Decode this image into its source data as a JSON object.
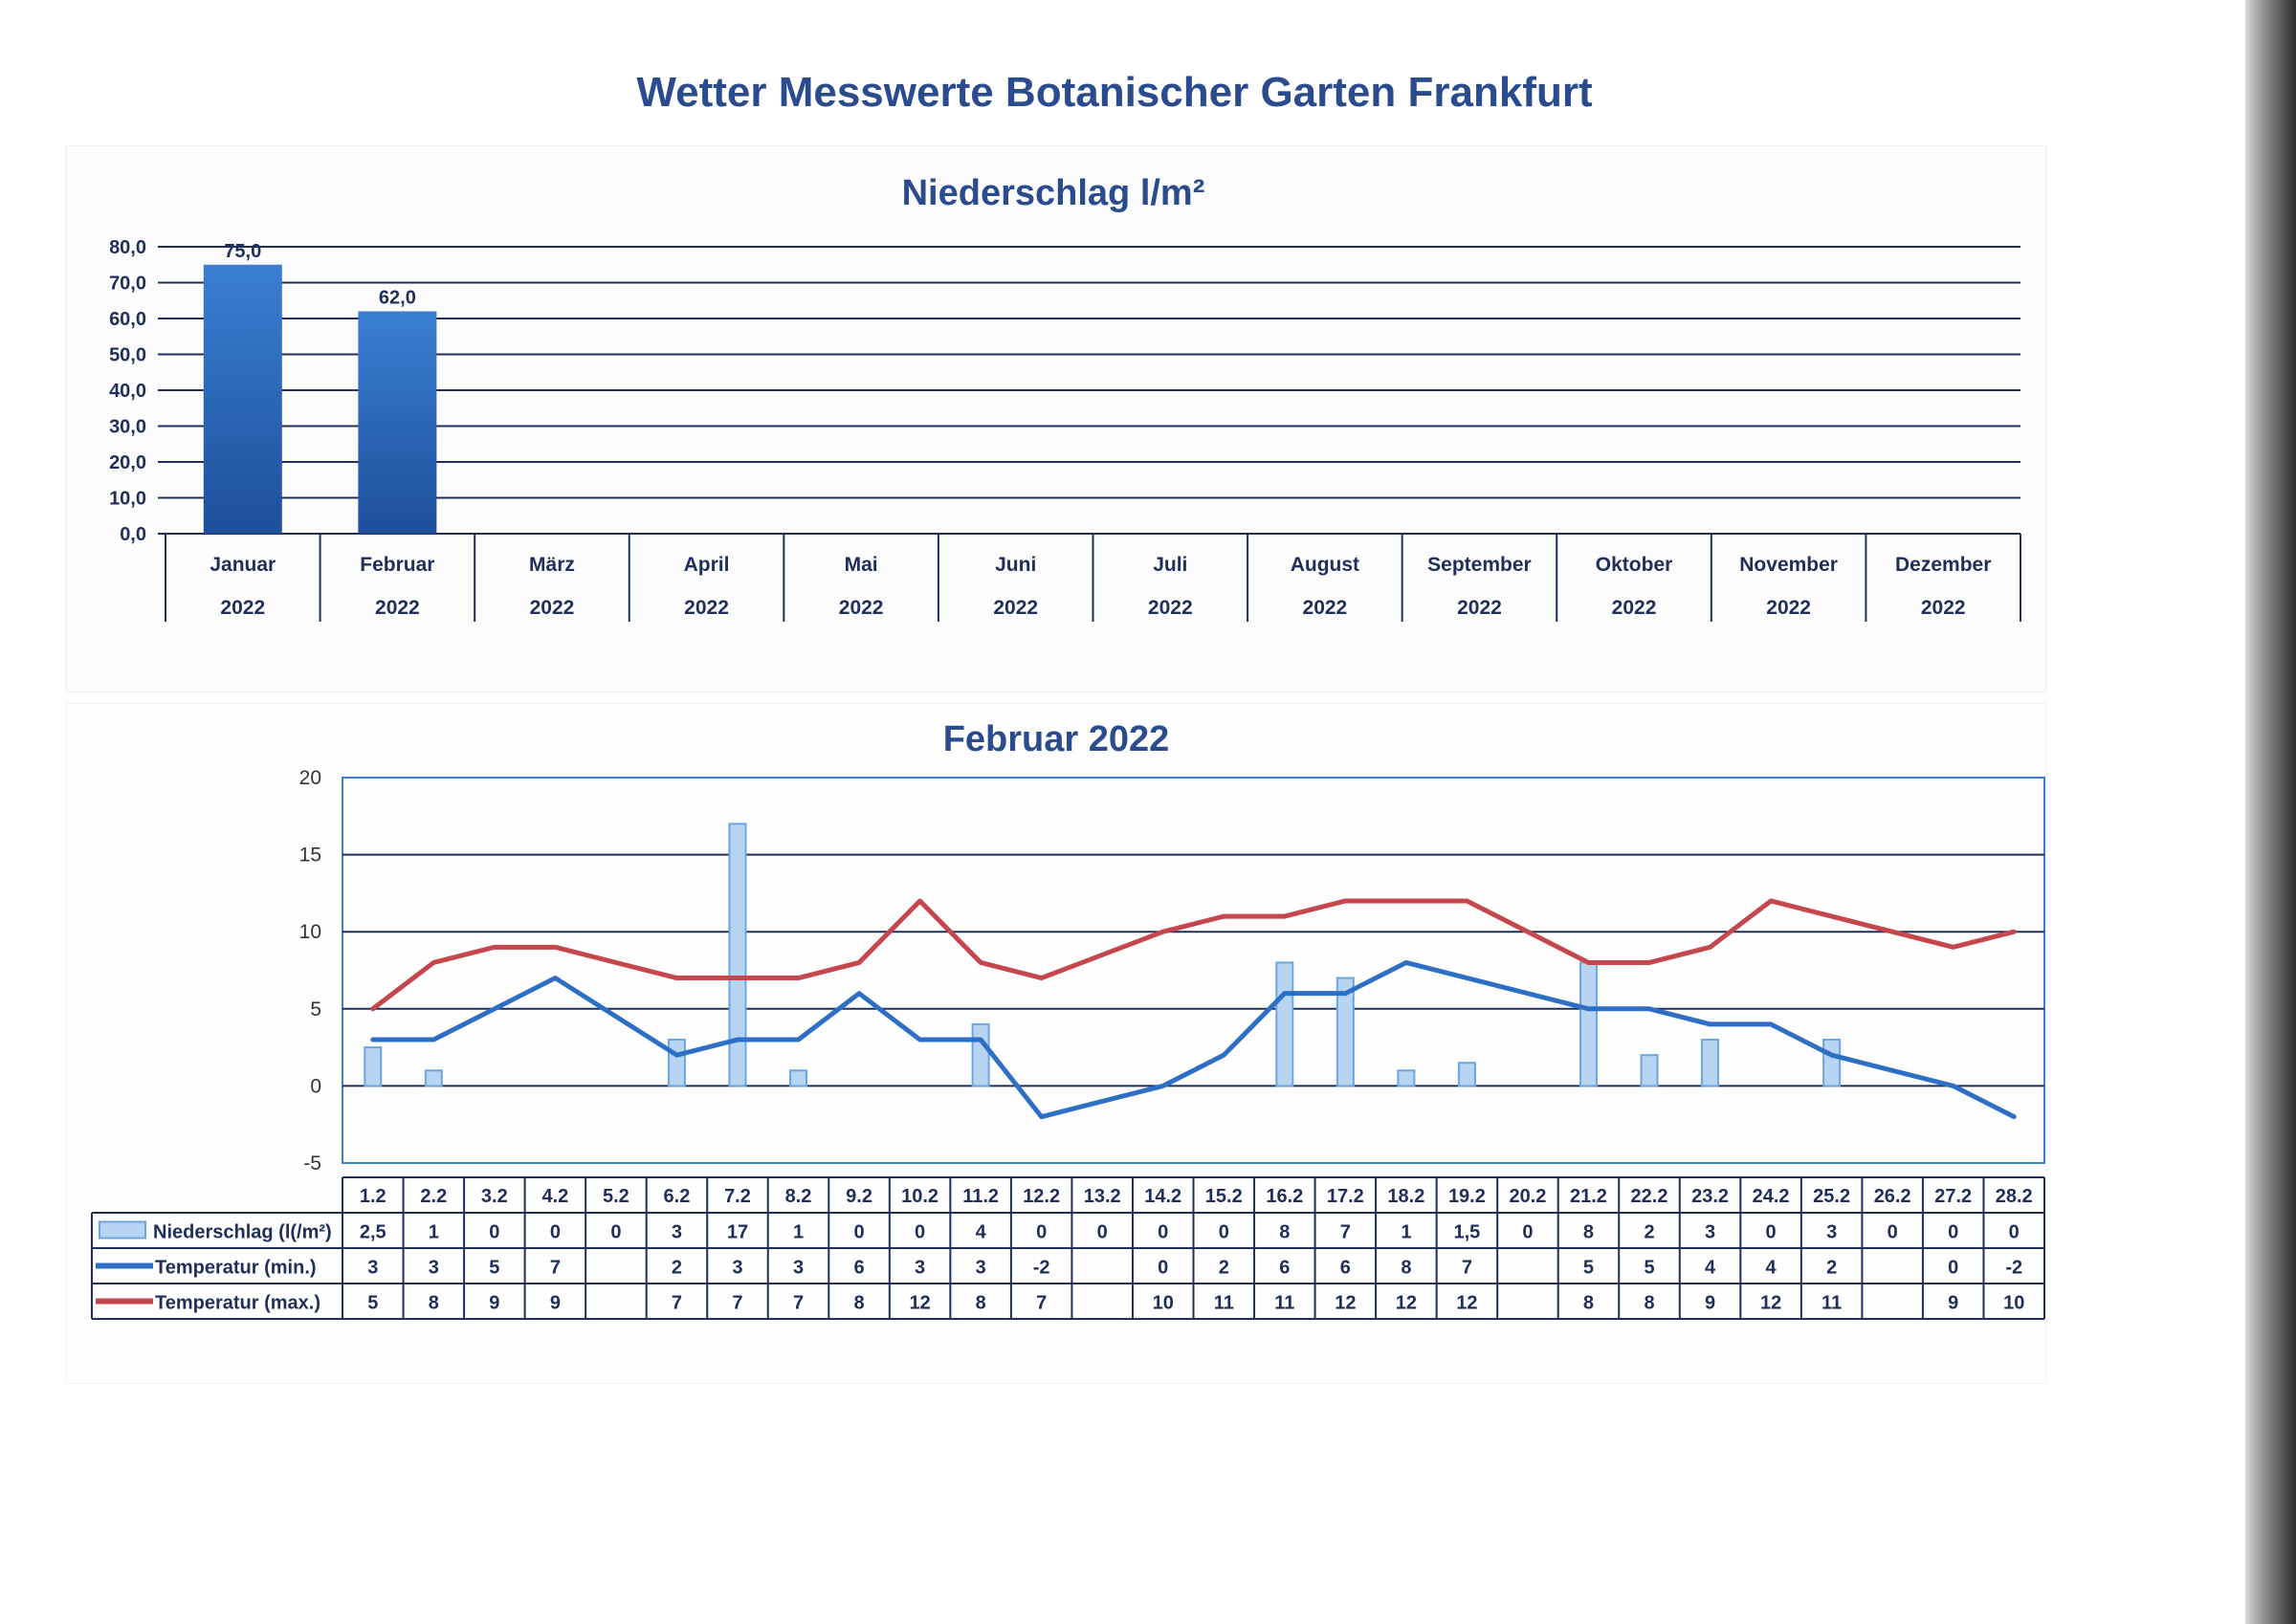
{
  "page": {
    "title": "Wetter Messwerte Botanischer Garten Frankfurt"
  },
  "colors": {
    "title": "#2a4c8e",
    "bar_dark": "#1d4f9a",
    "bar_light": "#3a7fd2",
    "grid": "#1f2f5a",
    "light_bar_fill": "#b7d5f2",
    "light_bar_stroke": "#6ba6dc",
    "temp_min": "#2e6fc6",
    "temp_max": "#c5474d",
    "axis_frame": "#3d7fd0"
  },
  "chart_data": [
    {
      "type": "bar",
      "title": "Niederschlag l/m²",
      "ylim": [
        0,
        80
      ],
      "y_ticks": [
        "0,0",
        "10,0",
        "20,0",
        "30,0",
        "40,0",
        "50,0",
        "60,0",
        "70,0",
        "80,0"
      ],
      "categories": [
        {
          "month": "Januar",
          "year": "2022"
        },
        {
          "month": "Februar",
          "year": "2022"
        },
        {
          "month": "März",
          "year": "2022"
        },
        {
          "month": "April",
          "year": "2022"
        },
        {
          "month": "Mai",
          "year": "2022"
        },
        {
          "month": "Juni",
          "year": "2022"
        },
        {
          "month": "Juli",
          "year": "2022"
        },
        {
          "month": "August",
          "year": "2022"
        },
        {
          "month": "September",
          "year": "2022"
        },
        {
          "month": "Oktober",
          "year": "2022"
        },
        {
          "month": "November",
          "year": "2022"
        },
        {
          "month": "Dezember",
          "year": "2022"
        }
      ],
      "values": [
        75.0,
        62.0,
        null,
        null,
        null,
        null,
        null,
        null,
        null,
        null,
        null,
        null
      ],
      "value_labels": [
        "75,0",
        "62,0",
        "",
        "",
        "",
        "",
        "",
        "",
        "",
        "",
        "",
        ""
      ],
      "grid": true
    },
    {
      "type": "bar+line",
      "title": "Februar 2022",
      "ylim": [
        -5,
        20
      ],
      "y_ticks": [
        "-5",
        "0",
        "5",
        "10",
        "15",
        "20"
      ],
      "categories": [
        "1.2",
        "2.2",
        "3.2",
        "4.2",
        "5.2",
        "6.2",
        "7.2",
        "8.2",
        "9.2",
        "10.2",
        "11.2",
        "12.2",
        "13.2",
        "14.2",
        "15.2",
        "16.2",
        "17.2",
        "18.2",
        "19.2",
        "20.2",
        "21.2",
        "22.2",
        "23.2",
        "24.2",
        "25.2",
        "26.2",
        "27.2",
        "28.2"
      ],
      "series": [
        {
          "name": "Niederschlag (l(/m²)",
          "kind": "bar",
          "values": [
            2.5,
            1,
            0,
            0,
            0,
            3,
            17,
            1,
            0,
            0,
            4,
            0,
            0,
            0,
            0,
            8,
            7,
            1,
            1.5,
            0,
            8,
            2,
            3,
            0,
            3,
            0,
            0,
            0
          ],
          "labels": [
            "2,5",
            "1",
            "0",
            "0",
            "0",
            "3",
            "17",
            "1",
            "0",
            "0",
            "4",
            "0",
            "0",
            "0",
            "0",
            "8",
            "7",
            "1",
            "1,5",
            "0",
            "8",
            "2",
            "3",
            "0",
            "3",
            "0",
            "0",
            "0"
          ]
        },
        {
          "name": "Temperatur (min.)",
          "kind": "line",
          "values": [
            3,
            3,
            5,
            7,
            null,
            2,
            3,
            3,
            6,
            3,
            3,
            -2,
            null,
            0,
            2,
            6,
            6,
            8,
            7,
            null,
            5,
            5,
            4,
            4,
            2,
            null,
            0,
            -2
          ],
          "labels": [
            "3",
            "3",
            "5",
            "7",
            "",
            "2",
            "3",
            "3",
            "6",
            "3",
            "3",
            "-2",
            "",
            "0",
            "2",
            "6",
            "6",
            "8",
            "7",
            "",
            "5",
            "5",
            "4",
            "4",
            "2",
            "",
            "0",
            "-2"
          ]
        },
        {
          "name": "Temperatur (max.)",
          "kind": "line",
          "values": [
            5,
            8,
            9,
            9,
            null,
            7,
            7,
            7,
            8,
            12,
            8,
            7,
            null,
            10,
            11,
            11,
            12,
            12,
            12,
            null,
            8,
            8,
            9,
            12,
            11,
            null,
            9,
            10
          ],
          "labels": [
            "5",
            "8",
            "9",
            "9",
            "",
            "7",
            "7",
            "7",
            "8",
            "12",
            "8",
            "7",
            "",
            "10",
            "11",
            "11",
            "12",
            "12",
            "12",
            "",
            "8",
            "8",
            "9",
            "12",
            "11",
            "",
            "9",
            "10"
          ]
        }
      ],
      "grid": true
    }
  ]
}
